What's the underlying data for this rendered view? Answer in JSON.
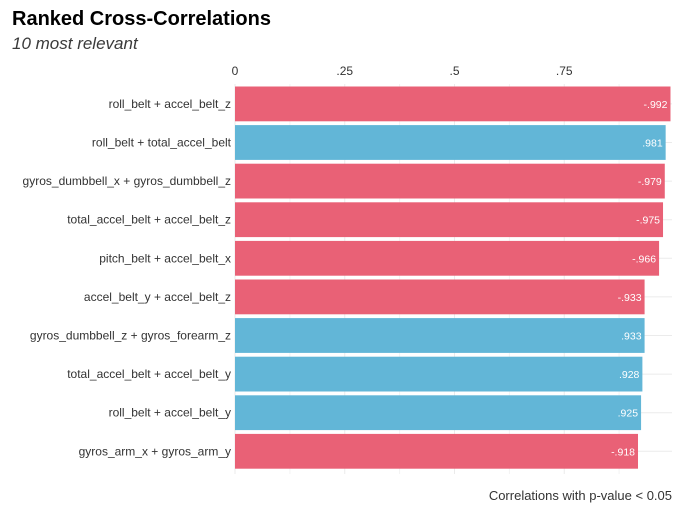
{
  "chart_data": {
    "type": "bar",
    "orientation": "horizontal",
    "title": "Ranked Cross-Correlations",
    "subtitle": "10 most relevant",
    "caption": "Correlations with p-value < 0.05",
    "xlabel": "",
    "ylabel": "",
    "xlim": [
      0,
      1
    ],
    "x_axis_position": "top",
    "x_ticks": [
      0,
      0.25,
      0.5,
      0.75
    ],
    "x_tick_labels": [
      "0",
      ".25",
      ".5",
      ".75"
    ],
    "grid": true,
    "legend": "none",
    "colors": {
      "negative": "#E96176",
      "positive": "#62B6D7"
    },
    "categories": [
      "roll_belt + accel_belt_z",
      "roll_belt + total_accel_belt",
      "gyros_dumbbell_x + gyros_dumbbell_z",
      "total_accel_belt + accel_belt_z",
      "pitch_belt + accel_belt_x",
      "accel_belt_y + accel_belt_z",
      "gyros_dumbbell_z + gyros_forearm_z",
      "total_accel_belt + accel_belt_y",
      "roll_belt + accel_belt_y",
      "gyros_arm_x + gyros_arm_y"
    ],
    "values": [
      -0.992,
      0.981,
      -0.979,
      -0.975,
      -0.966,
      -0.933,
      0.933,
      0.928,
      0.925,
      -0.918
    ],
    "value_labels": [
      "-.992",
      ".981",
      "-.979",
      "-.975",
      "-.966",
      "-.933",
      ".933",
      ".928",
      ".925",
      "-.918"
    ]
  }
}
